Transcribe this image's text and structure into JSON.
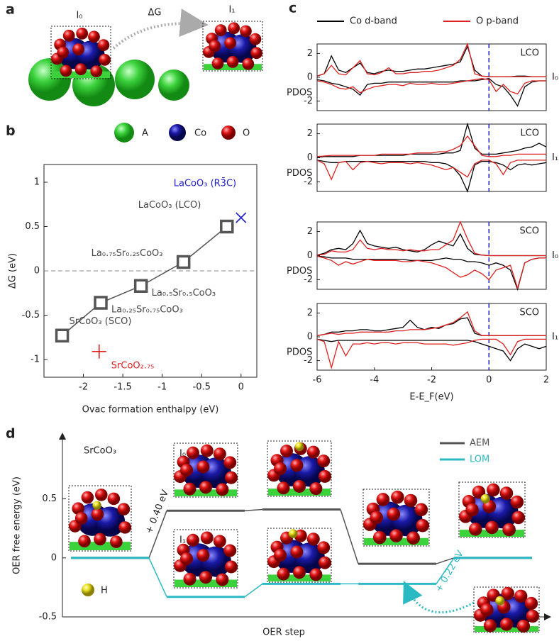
{
  "panel_labels": [
    "a",
    "b",
    "c",
    "d"
  ],
  "panel_a": {
    "labels": [
      "I₀",
      "ΔG",
      "I₁"
    ]
  },
  "atom_legend": [
    "A",
    "Co",
    "O"
  ],
  "chart_data": [
    {
      "type": "scatter",
      "ylabel": "ΔG (eV)",
      "xlabel": "Ovac formation enthalpy (eV)",
      "xlim": [
        -2.5,
        0.2
      ],
      "ylim": [
        -1.2,
        1.2
      ],
      "xticks": [
        -2,
        -1.5,
        -1,
        -0.5,
        0
      ],
      "yticks": [
        -1,
        -0.5,
        0,
        0.5,
        1
      ],
      "hline": 0,
      "series": [
        {
          "color": "#555555",
          "marker": "square",
          "line": true,
          "x": [
            -2.27,
            -1.78,
            -1.27,
            -0.73,
            -0.18
          ],
          "values": [
            -0.73,
            -0.36,
            -0.17,
            0.1,
            0.5
          ],
          "point_labels": [
            "SrCoO₃ (SCO)",
            "La₀.₂₅Sr₀.₇₅CoO₃",
            "La₀.₅Sr₀.₅CoO₃",
            "La₀.₇₅Sr₀.₂₅CoO₃",
            "LaCoO₃ (LCO)"
          ]
        },
        {
          "color": "#1f1fd0",
          "marker": "x",
          "x": [
            0.0
          ],
          "values": [
            0.6
          ],
          "point_labels": [
            "LaCoO₃ (R3̄C)"
          ]
        },
        {
          "color": "#e02020",
          "marker": "plus",
          "x": [
            -1.8
          ],
          "values": [
            -0.91
          ],
          "point_labels": [
            "SrCoO₂.₇₅"
          ]
        }
      ]
    },
    {
      "type": "line",
      "label": "LCO",
      "state": "I₀",
      "ylabel": "PDOS",
      "xlim": [
        -6,
        2
      ],
      "ylim": [
        -2.8,
        2.8
      ],
      "yticks": [
        -2,
        0,
        2
      ],
      "vline": 0,
      "x": [
        -6,
        -5.75,
        -5.5,
        -5.25,
        -5,
        -4.75,
        -4.5,
        -4.25,
        -4,
        -3.75,
        -3.5,
        -3.25,
        -3,
        -2.75,
        -2.5,
        -2.25,
        -2,
        -1.75,
        -1.5,
        -1.25,
        -1,
        -0.75,
        -0.5,
        -0.25,
        0,
        0.25,
        0.5,
        0.75,
        1,
        1.25,
        1.5,
        1.75,
        2
      ],
      "series": [
        {
          "name": "Co d-band",
          "color": "#000000",
          "values": [
            0.1,
            0.3,
            1.8,
            0.6,
            0.4,
            0.8,
            1.2,
            0.4,
            0.3,
            0.5,
            0.6,
            0.5,
            0.5,
            0.6,
            0.7,
            0.7,
            0.8,
            0.9,
            1.0,
            1.1,
            1.3,
            2.6,
            0.6,
            0.1,
            0.05,
            0.05,
            0.05,
            0.05,
            0.1,
            0.1,
            0.05,
            0.05,
            0.05
          ],
          "values_down": [
            -0.2,
            -0.3,
            -0.5,
            -0.6,
            -0.8,
            -1.0,
            -1.5,
            -0.6,
            -0.5,
            -0.5,
            -0.4,
            -0.4,
            -0.4,
            -0.4,
            -0.4,
            -0.4,
            -0.4,
            -0.4,
            -0.4,
            -0.4,
            -0.3,
            -0.3,
            -0.3,
            -0.2,
            -0.1,
            -0.6,
            -0.8,
            -1.5,
            -2.4,
            -0.8,
            -0.4,
            -0.3,
            -0.3
          ]
        },
        {
          "name": "O p-band",
          "color": "#e02020",
          "values": [
            0.1,
            0.3,
            1.0,
            0.3,
            0.2,
            0.8,
            1.4,
            0.3,
            0.2,
            0.4,
            0.8,
            0.3,
            0.3,
            0.4,
            0.4,
            0.5,
            0.5,
            0.6,
            0.8,
            1.0,
            1.5,
            2.8,
            0.3,
            0.1,
            0.05,
            0.05,
            0.05,
            0.05,
            0.05,
            0.05,
            0.05,
            0.05,
            0.05
          ],
          "values_down": [
            -0.3,
            -0.4,
            -0.6,
            -0.9,
            -1.0,
            -0.8,
            -1.3,
            -1.0,
            -0.8,
            -0.7,
            -0.6,
            -0.6,
            -0.7,
            -0.5,
            -0.6,
            -0.6,
            -0.5,
            -0.6,
            -0.6,
            -0.5,
            -0.4,
            -0.3,
            -0.2,
            -0.1,
            -0.2,
            -1.2,
            -0.6,
            -1.2,
            -1.4,
            -0.5,
            -0.3,
            -0.3,
            -0.3
          ]
        }
      ]
    },
    {
      "type": "line",
      "label": "LCO",
      "state": "I₁",
      "ylabel": "PDOS",
      "xlim": [
        -6,
        2
      ],
      "ylim": [
        -2.8,
        2.8
      ],
      "yticks": [
        -2,
        0,
        2
      ],
      "vline": 0,
      "x": [
        -6,
        -5.75,
        -5.5,
        -5.25,
        -5,
        -4.75,
        -4.5,
        -4.25,
        -4,
        -3.75,
        -3.5,
        -3.25,
        -3,
        -2.75,
        -2.5,
        -2.25,
        -2,
        -1.75,
        -1.5,
        -1.25,
        -1,
        -0.75,
        -0.5,
        -0.25,
        0,
        0.25,
        0.5,
        0.75,
        1,
        1.25,
        1.5,
        1.75,
        2
      ],
      "series": [
        {
          "color": "#000000",
          "values": [
            0.05,
            0.1,
            0.1,
            0.1,
            0.1,
            0.1,
            0.2,
            0.2,
            0.2,
            0.2,
            0.2,
            0.2,
            0.2,
            0.3,
            0.3,
            0.3,
            0.3,
            0.3,
            0.4,
            0.4,
            0.6,
            2.8,
            0.8,
            0.3,
            0.3,
            0.3,
            0.4,
            0.5,
            0.6,
            0.8,
            0.9,
            1.2,
            0.9
          ],
          "values_down": [
            -0.2,
            -0.3,
            -0.4,
            -0.4,
            -0.3,
            -0.3,
            -0.3,
            -0.3,
            -0.3,
            -0.3,
            -0.3,
            -0.3,
            -0.3,
            -0.3,
            -0.3,
            -0.3,
            -0.4,
            -0.4,
            -0.5,
            -0.8,
            -1.5,
            -2.8,
            -0.6,
            -0.3,
            -0.3,
            -0.4,
            -0.6,
            -1.0,
            -0.6,
            -0.5,
            -0.6,
            -0.5,
            -0.4
          ]
        },
        {
          "color": "#e02020",
          "values": [
            0.1,
            0.15,
            0.2,
            0.2,
            0.2,
            0.2,
            0.2,
            0.2,
            0.2,
            0.3,
            0.3,
            0.3,
            0.3,
            0.3,
            0.4,
            0.4,
            0.4,
            0.5,
            0.5,
            0.7,
            1.0,
            1.8,
            1.0,
            0.2,
            0.1,
            0.1,
            0.2,
            0.2,
            0.3,
            0.3,
            0.3,
            0.3,
            0.3
          ],
          "values_down": [
            -0.2,
            -0.5,
            -1.8,
            -0.4,
            -0.3,
            -1.0,
            -0.4,
            -0.3,
            -0.4,
            -0.5,
            -0.4,
            -0.4,
            -0.4,
            -0.5,
            -0.4,
            -0.5,
            -0.6,
            -0.8,
            -1.0,
            -0.8,
            -1.2,
            -1.6,
            -0.5,
            -0.2,
            -0.2,
            -0.5,
            -1.4,
            -0.4,
            -0.2,
            -0.2,
            -0.2,
            -0.2,
            -0.2
          ]
        }
      ]
    },
    {
      "type": "line",
      "label": "SCO",
      "state": "I₀",
      "ylabel": "PDOS",
      "xlim": [
        -6,
        2
      ],
      "ylim": [
        -2.8,
        2.8
      ],
      "yticks": [
        -2,
        0,
        2
      ],
      "vline": 0,
      "x": [
        -6,
        -5.75,
        -5.5,
        -5.25,
        -5,
        -4.75,
        -4.5,
        -4.25,
        -4,
        -3.75,
        -3.5,
        -3.25,
        -3,
        -2.75,
        -2.5,
        -2.25,
        -2,
        -1.75,
        -1.5,
        -1.25,
        -1,
        -0.75,
        -0.5,
        -0.25,
        0,
        0.25,
        0.5,
        0.75,
        1,
        1.25,
        1.5,
        1.75,
        2
      ],
      "series": [
        {
          "color": "#000000",
          "values": [
            0.05,
            0.2,
            0.5,
            0.6,
            0.5,
            1.0,
            2.1,
            1.0,
            0.8,
            0.7,
            0.6,
            0.7,
            0.5,
            0.4,
            0.3,
            0.5,
            0.9,
            1.2,
            1.0,
            0.8,
            1.8,
            0.6,
            0.1,
            0.05,
            0,
            0,
            0,
            0,
            0,
            0,
            0,
            0,
            0
          ],
          "values_down": [
            -0.05,
            -0.1,
            -0.2,
            -0.2,
            -0.2,
            -0.3,
            -0.3,
            -0.3,
            -0.3,
            -0.3,
            -0.3,
            -0.3,
            -0.3,
            -0.4,
            -0.4,
            -0.4,
            -0.4,
            -0.3,
            -0.2,
            -0.3,
            -0.3,
            -0.5,
            -0.5,
            -0.6,
            -0.8,
            -0.6,
            -0.8,
            -1.2,
            -2.8,
            -0.6,
            -0.3,
            -0.2,
            -0.2
          ]
        },
        {
          "color": "#e02020",
          "values": [
            0.05,
            0.1,
            0.4,
            0.3,
            0.3,
            0.5,
            1.3,
            0.6,
            0.5,
            0.6,
            0.5,
            0.5,
            0.4,
            0.5,
            0.4,
            0.4,
            0.5,
            0.5,
            0.9,
            1.3,
            2.8,
            1.4,
            0.2,
            0.05,
            0,
            0,
            0,
            0,
            0,
            0,
            0,
            0,
            0
          ],
          "values_down": [
            -0.05,
            -0.2,
            -0.4,
            -0.8,
            -0.5,
            -0.7,
            -0.5,
            -0.3,
            -0.4,
            -0.4,
            -0.4,
            -0.4,
            -0.5,
            -0.5,
            -0.4,
            -0.5,
            -0.6,
            -0.8,
            -1.0,
            -1.4,
            -1.8,
            -1.6,
            -1.2,
            -1.5,
            -2.0,
            -1.2,
            -1.0,
            -0.8,
            -2.7,
            -0.6,
            -0.3,
            -0.2,
            -0.2
          ]
        }
      ]
    },
    {
      "type": "line",
      "label": "SCO",
      "state": "I₁",
      "ylabel": "PDOS",
      "xlabel": "E-E_F(eV)",
      "xlim": [
        -6,
        2
      ],
      "ylim": [
        -2.8,
        2.8
      ],
      "yticks": [
        -2,
        0,
        2
      ],
      "xticks": [
        -6,
        -4,
        -2,
        0,
        2
      ],
      "vline": 0,
      "x": [
        -6,
        -5.75,
        -5.5,
        -5.25,
        -5,
        -4.75,
        -4.5,
        -4.25,
        -4,
        -3.75,
        -3.5,
        -3.25,
        -3,
        -2.75,
        -2.5,
        -2.25,
        -2,
        -1.75,
        -1.5,
        -1.25,
        -1,
        -0.75,
        -0.5,
        -0.25,
        0,
        0.25,
        0.5,
        0.75,
        1,
        1.25,
        1.5,
        1.75,
        2
      ],
      "series": [
        {
          "color": "#000000",
          "values": [
            0.1,
            0.2,
            0.4,
            0.4,
            0.5,
            0.5,
            0.6,
            0.6,
            0.5,
            0.5,
            0.6,
            0.7,
            0.8,
            1.4,
            0.8,
            0.6,
            0.8,
            0.7,
            1.0,
            1.1,
            1.5,
            1.6,
            0.3,
            0.1,
            0.1,
            0.1,
            0.1,
            0.1,
            0.1,
            0.1,
            0.1,
            0.1,
            0.1
          ],
          "values_down": [
            -0.2,
            -0.3,
            -0.4,
            -0.3,
            -0.3,
            -0.3,
            -0.3,
            -0.3,
            -0.3,
            -0.3,
            -0.3,
            -0.3,
            -0.3,
            -0.3,
            -0.3,
            -0.3,
            -0.3,
            -0.3,
            -0.3,
            -0.3,
            -0.3,
            -0.3,
            -0.4,
            -0.6,
            -0.8,
            -1.0,
            -1.2,
            -2.0,
            -1.0,
            -0.6,
            -0.8,
            -1.0,
            -0.8
          ]
        },
        {
          "color": "#e02020",
          "values": [
            0.1,
            0.2,
            0.3,
            0.2,
            0.3,
            0.3,
            0.4,
            0.4,
            0.4,
            0.4,
            0.4,
            0.5,
            0.5,
            0.6,
            0.6,
            0.6,
            0.7,
            0.8,
            1.0,
            1.2,
            1.6,
            2.1,
            0.5,
            0.1,
            0.1,
            0.1,
            0.1,
            0.1,
            0.1,
            0.1,
            0.1,
            0.1,
            0.1
          ],
          "values_down": [
            -0.2,
            -0.4,
            -2.6,
            -0.4,
            -1.6,
            -0.6,
            -0.6,
            -0.5,
            -0.6,
            -0.5,
            -0.5,
            -0.6,
            -0.5,
            -0.5,
            -0.5,
            -0.6,
            -0.6,
            -0.6,
            -0.6,
            -0.7,
            -0.6,
            -0.5,
            -0.3,
            -0.2,
            -0.2,
            -0.2,
            -0.6,
            -1.5,
            -0.4,
            -0.2,
            -0.2,
            -0.2,
            -0.2
          ]
        }
      ]
    },
    {
      "type": "step",
      "ylabel": "OER free energy (eV)",
      "xlabel": "OER step",
      "ylim": [
        -0.5,
        1.05
      ],
      "yticks": [
        -0.5,
        0,
        0.5
      ],
      "label": "SrCoO₃",
      "annotations": [
        "+ 0.40 eV",
        "+ 0.22 eV",
        "H"
      ],
      "image_labels": [
        "I₀",
        "I₁"
      ],
      "series": [
        {
          "name": "AEM",
          "color": "#555555",
          "values": [
            0,
            0.4,
            0.41,
            -0.05,
            0
          ]
        },
        {
          "name": "LOM",
          "color": "#2bbac4",
          "values": [
            0,
            -0.33,
            -0.22,
            -0.22,
            0
          ]
        }
      ]
    }
  ]
}
